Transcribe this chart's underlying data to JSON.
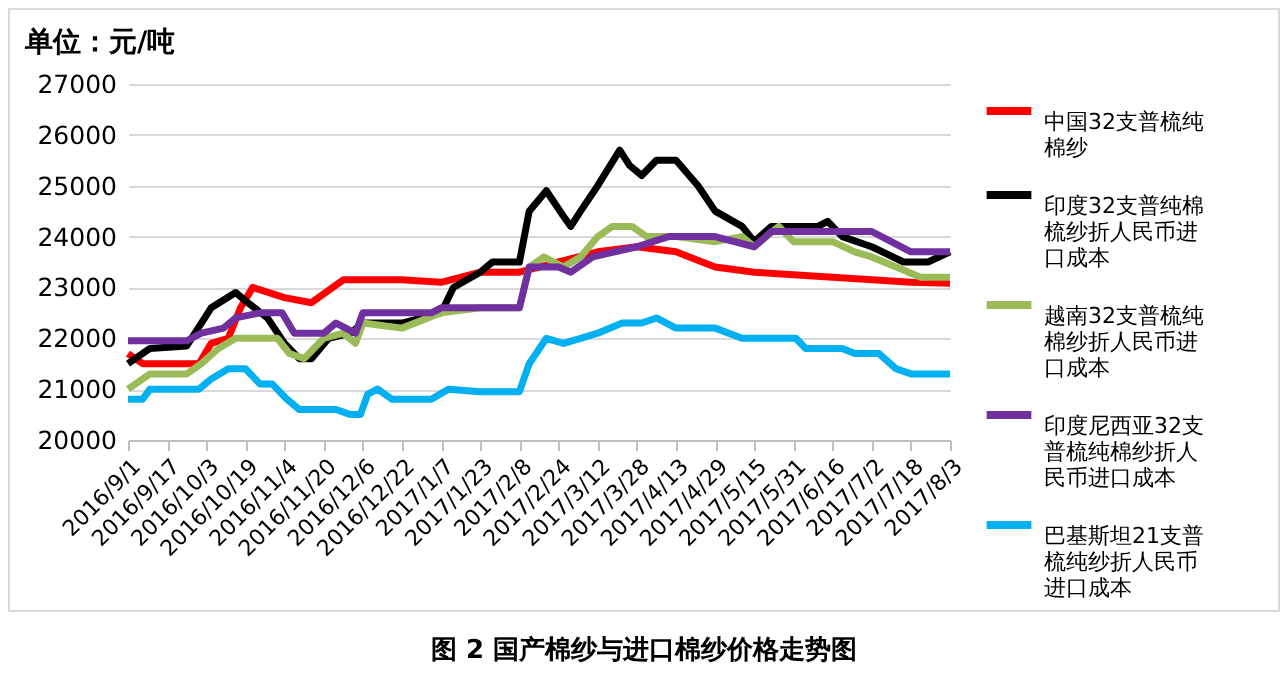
{
  "chart_data": {
    "type": "line",
    "ylabel": "单位：元/吨",
    "annotations": [
      "图 2 国产棉纱与进口棉纱价格走势图"
    ],
    "xlim": [
      "2016-09-01",
      "2017-08-03"
    ],
    "xticks": [
      {
        "value": "2016-09-01",
        "label": "2016/9/1"
      },
      {
        "value": "2016-09-17",
        "label": "2016/9/17"
      },
      {
        "value": "2016-10-03",
        "label": "2016/10/3"
      },
      {
        "value": "2016-10-19",
        "label": "2016/10/19"
      },
      {
        "value": "2016-11-04",
        "label": "2016/11/4"
      },
      {
        "value": "2016-11-20",
        "label": "2016/11/20"
      },
      {
        "value": "2016-12-06",
        "label": "2016/12/6"
      },
      {
        "value": "2016-12-22",
        "label": "2016/12/22"
      },
      {
        "value": "2017-01-07",
        "label": "2017/1/7"
      },
      {
        "value": "2017-01-23",
        "label": "2017/1/23"
      },
      {
        "value": "2017-02-08",
        "label": "2017/2/8"
      },
      {
        "value": "2017-02-24",
        "label": "2017/2/24"
      },
      {
        "value": "2017-03-12",
        "label": "2017/3/12"
      },
      {
        "value": "2017-03-28",
        "label": "2017/3/28"
      },
      {
        "value": "2017-04-13",
        "label": "2017/4/13"
      },
      {
        "value": "2017-04-29",
        "label": "2017/4/29"
      },
      {
        "value": "2017-05-15",
        "label": "2017/5/15"
      },
      {
        "value": "2017-05-31",
        "label": "2017/5/31"
      },
      {
        "value": "2017-06-16",
        "label": "2017/6/16"
      },
      {
        "value": "2017-07-02",
        "label": "2017/7/2"
      },
      {
        "value": "2017-07-18",
        "label": "2017/7/18"
      },
      {
        "value": "2017-08-03",
        "label": "2017/8/3"
      }
    ],
    "ylim": [
      20000,
      27000
    ],
    "yticks": [
      20000,
      21000,
      22000,
      23000,
      24000,
      25000,
      26000,
      27000
    ],
    "grid": "y",
    "legend": "right",
    "series": [
      {
        "name": "中国32支普梳纯棉纱",
        "color": "#ff0000",
        "x": [
          "2016-09-01",
          "2016-09-07",
          "2016-09-30",
          "2016-10-05",
          "2016-10-12",
          "2016-10-17",
          "2016-10-22",
          "2016-11-04",
          "2016-11-15",
          "2016-11-28",
          "2016-12-22",
          "2017-01-07",
          "2017-01-23",
          "2017-02-08",
          "2017-02-24",
          "2017-03-12",
          "2017-03-28",
          "2017-04-13",
          "2017-04-29",
          "2017-05-15",
          "2017-05-31",
          "2017-06-16",
          "2017-07-02",
          "2017-07-18",
          "2017-08-03"
        ],
        "values": [
          21700,
          21500,
          21500,
          21900,
          22000,
          22600,
          23000,
          22800,
          22700,
          23150,
          23150,
          23100,
          23300,
          23300,
          23500,
          23700,
          23800,
          23700,
          23400,
          23300,
          23250,
          23200,
          23150,
          23100,
          23080
        ]
      },
      {
        "name": "印度32支普纯棉梳纱折人民币进口成本",
        "color": "#000000",
        "x": [
          "2016-09-01",
          "2016-09-10",
          "2016-09-25",
          "2016-10-01",
          "2016-10-05",
          "2016-10-15",
          "2016-10-20",
          "2016-10-28",
          "2016-11-04",
          "2016-11-10",
          "2016-11-15",
          "2016-11-22",
          "2016-12-01",
          "2016-12-06",
          "2016-12-22",
          "2017-01-07",
          "2017-01-12",
          "2017-01-23",
          "2017-01-28",
          "2017-02-08",
          "2017-02-12",
          "2017-02-19",
          "2017-02-26",
          "2017-03-01",
          "2017-03-05",
          "2017-03-12",
          "2017-03-21",
          "2017-03-25",
          "2017-03-30",
          "2017-04-05",
          "2017-04-13",
          "2017-04-22",
          "2017-04-29",
          "2017-05-10",
          "2017-05-15",
          "2017-05-22",
          "2017-06-10",
          "2017-06-14",
          "2017-06-20",
          "2017-07-02",
          "2017-07-15",
          "2017-07-25",
          "2017-08-03"
        ],
        "values": [
          21500,
          21800,
          21850,
          22300,
          22600,
          22900,
          22700,
          22400,
          21900,
          21600,
          21600,
          22000,
          22100,
          22300,
          22300,
          22500,
          23000,
          23300,
          23500,
          23500,
          24500,
          24900,
          24400,
          24200,
          24500,
          25000,
          25700,
          25400,
          25200,
          25500,
          25500,
          25000,
          24500,
          24200,
          23900,
          24200,
          24200,
          24300,
          24000,
          23800,
          23500,
          23500,
          23700
        ]
      },
      {
        "name": "越南32支普梳纯棉纱折人民币进口成本",
        "color": "#9bbb59",
        "x": [
          "2016-09-01",
          "2016-09-10",
          "2016-09-25",
          "2016-10-01",
          "2016-10-08",
          "2016-10-15",
          "2016-11-01",
          "2016-11-06",
          "2016-11-12",
          "2016-11-20",
          "2016-11-28",
          "2016-12-03",
          "2016-12-06",
          "2016-12-22",
          "2017-01-07",
          "2017-01-23",
          "2017-02-08",
          "2017-02-12",
          "2017-02-18",
          "2017-02-26",
          "2017-03-05",
          "2017-03-12",
          "2017-03-18",
          "2017-03-26",
          "2017-04-01",
          "2017-04-13",
          "2017-04-29",
          "2017-05-10",
          "2017-05-15",
          "2017-05-25",
          "2017-05-31",
          "2017-06-16",
          "2017-06-25",
          "2017-07-02",
          "2017-07-12",
          "2017-07-22",
          "2017-08-03"
        ],
        "values": [
          21000,
          21300,
          21300,
          21500,
          21800,
          22000,
          22000,
          21700,
          21600,
          22000,
          22100,
          21900,
          22300,
          22200,
          22500,
          22600,
          22600,
          23400,
          23600,
          23400,
          23600,
          24000,
          24200,
          24200,
          24000,
          24000,
          23900,
          24000,
          23800,
          24200,
          23900,
          23900,
          23700,
          23600,
          23400,
          23200,
          23200
        ]
      },
      {
        "name": "印度尼西亚32支普梳纯棉纱折人民币进口成本",
        "color": "#7030a0",
        "x": [
          "2016-09-01",
          "2016-09-25",
          "2016-10-01",
          "2016-10-10",
          "2016-10-15",
          "2016-10-25",
          "2016-11-03",
          "2016-11-08",
          "2016-11-20",
          "2016-11-25",
          "2016-12-03",
          "2016-12-06",
          "2017-01-03",
          "2017-01-07",
          "2017-02-08",
          "2017-02-12",
          "2017-02-24",
          "2017-03-01",
          "2017-03-10",
          "2017-03-28",
          "2017-04-10",
          "2017-04-29",
          "2017-05-15",
          "2017-05-22",
          "2017-07-02",
          "2017-07-10",
          "2017-07-18",
          "2017-08-03"
        ],
        "values": [
          21950,
          21950,
          22100,
          22200,
          22400,
          22500,
          22500,
          22100,
          22100,
          22300,
          22100,
          22500,
          22500,
          22600,
          22600,
          23400,
          23400,
          23300,
          23600,
          23800,
          24000,
          24000,
          23800,
          24100,
          24100,
          23900,
          23700,
          23700
        ]
      },
      {
        "name": "巴基斯坦21支普梳纯纱折人民币进口成本",
        "color": "#00b0f0",
        "x": [
          "2016-09-01",
          "2016-09-07",
          "2016-09-10",
          "2016-09-30",
          "2016-10-05",
          "2016-10-12",
          "2016-10-19",
          "2016-10-25",
          "2016-10-30",
          "2016-11-05",
          "2016-11-10",
          "2016-11-25",
          "2016-12-01",
          "2016-12-05",
          "2016-12-08",
          "2016-12-12",
          "2016-12-18",
          "2017-01-03",
          "2017-01-10",
          "2017-01-23",
          "2017-02-08",
          "2017-02-12",
          "2017-02-19",
          "2017-02-26",
          "2017-03-05",
          "2017-03-12",
          "2017-03-22",
          "2017-03-30",
          "2017-04-05",
          "2017-04-13",
          "2017-04-29",
          "2017-05-10",
          "2017-06-01",
          "2017-06-05",
          "2017-06-20",
          "2017-06-25",
          "2017-07-05",
          "2017-07-12",
          "2017-07-18",
          "2017-08-03"
        ],
        "values": [
          20800,
          20800,
          21000,
          21000,
          21200,
          21400,
          21400,
          21100,
          21100,
          20800,
          20600,
          20600,
          20500,
          20500,
          20900,
          21000,
          20800,
          20800,
          21000,
          20950,
          20950,
          21500,
          22000,
          21900,
          22000,
          22100,
          22300,
          22300,
          22400,
          22200,
          22200,
          22000,
          22000,
          21800,
          21800,
          21700,
          21700,
          21400,
          21300,
          21300
        ]
      }
    ]
  }
}
